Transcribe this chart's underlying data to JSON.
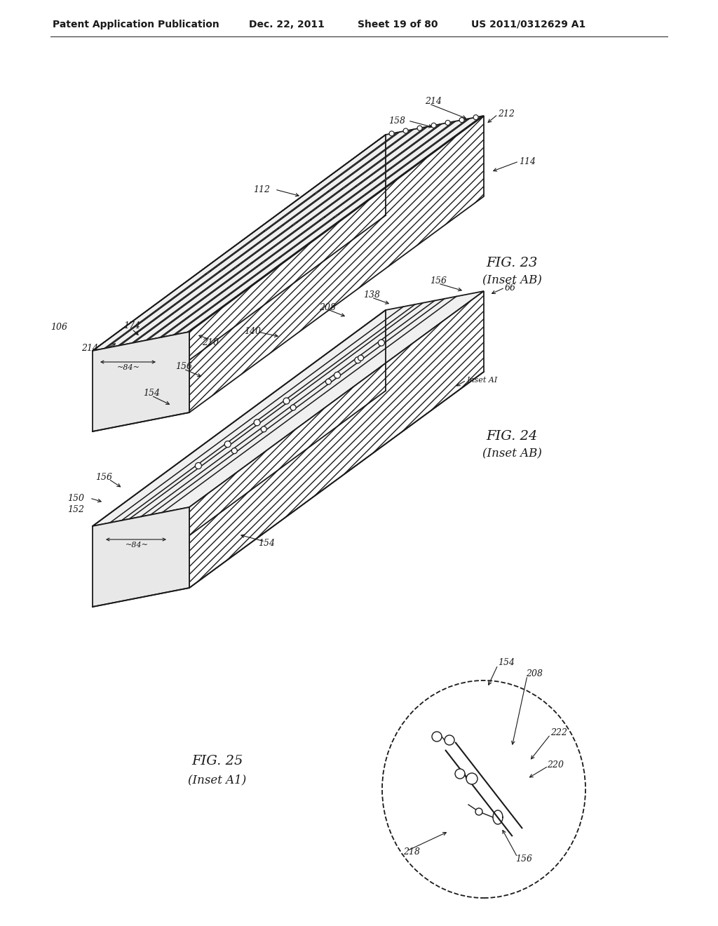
{
  "background_color": "#ffffff",
  "header_text": "Patent Application Publication",
  "header_date": "Dec. 22, 2011",
  "header_sheet": "Sheet 19 of 80",
  "header_patent": "US 2011/0312629 A1",
  "fig23_label": "FIG. 23",
  "fig23_sub": "(Inset AB)",
  "fig24_label": "FIG. 24",
  "fig24_sub": "(Inset AB)",
  "fig25_label": "FIG. 25",
  "fig25_sub": "(Inset A1)",
  "line_color": "#1a1a1a",
  "label_fontsize": 9,
  "header_fontsize": 10
}
